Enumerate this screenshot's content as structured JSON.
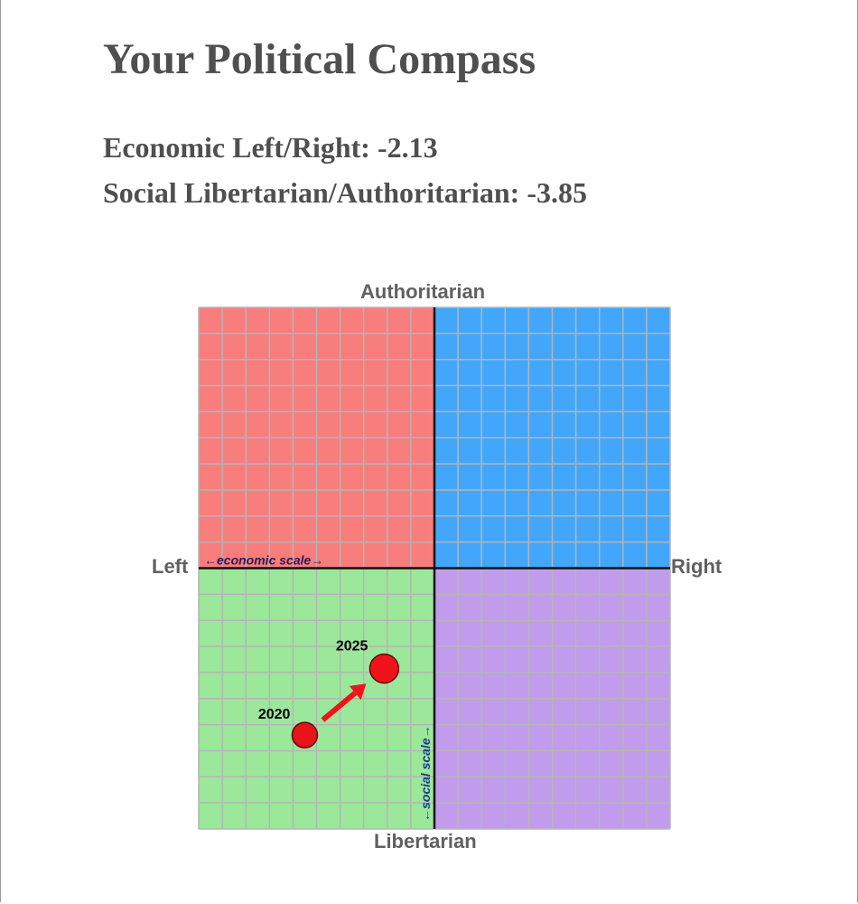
{
  "title": "Your Political Compass",
  "scores": {
    "economic_label": "Economic Left/Right:",
    "economic_value": "-2.13",
    "social_label": "Social Libertarian/Authoritarian:",
    "social_value": "-3.85"
  },
  "chart_data": {
    "type": "scatter",
    "xlim": [
      -10,
      10
    ],
    "ylim": [
      -10,
      10
    ],
    "grid": true,
    "axis_labels": {
      "top": "Authoritarian",
      "bottom": "Libertarian",
      "left": "Left",
      "right": "Right"
    },
    "scale_labels": {
      "economic": "←economic scale→",
      "social": "←social scale→"
    },
    "quadrant_colors": {
      "top_left": "#f87d7d",
      "top_right": "#42a7fb",
      "bottom_left": "#9be89a",
      "bottom_right": "#c19cec"
    },
    "points": [
      {
        "label": "2020",
        "x": -5.5,
        "y": -6.4,
        "color": "#e8141a"
      },
      {
        "label": "2025",
        "x": -2.13,
        "y": -3.85,
        "color": "#f0141a"
      }
    ],
    "arrow": {
      "from": "2020",
      "to": "2025",
      "color": "#f0141a"
    }
  }
}
